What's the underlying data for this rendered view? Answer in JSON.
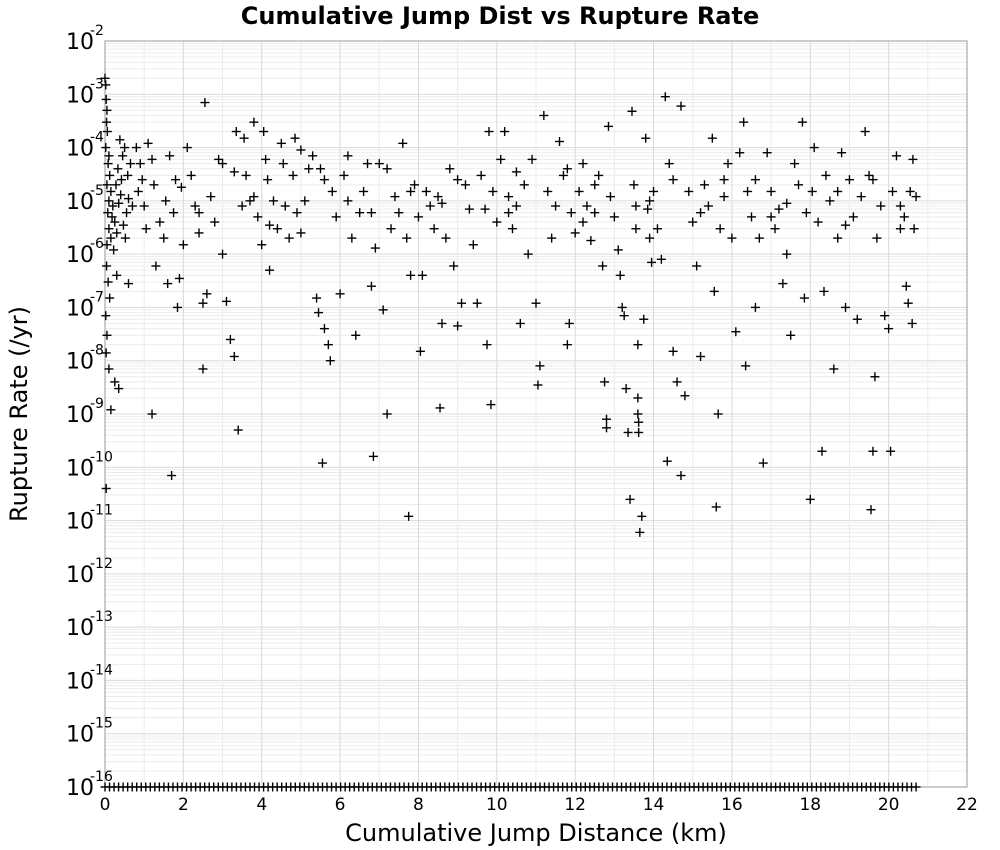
{
  "chart_data": {
    "type": "scatter",
    "title": "Cumulative Jump Dist vs Rupture Rate",
    "xlabel": "Cumulative Jump Distance (km)",
    "ylabel": "Rupture Rate (/yr)",
    "xlim": [
      0,
      22
    ],
    "ylim": [
      1e-16,
      0.01
    ],
    "yscale": "log",
    "grid": true,
    "marker": "+",
    "marker_color": "#000000",
    "x_ticks": [
      "0",
      "2",
      "4",
      "6",
      "8",
      "10",
      "12",
      "14",
      "16",
      "18",
      "20",
      "22"
    ],
    "y_ticks": [
      {
        "base": "10",
        "exp": "-16"
      },
      {
        "base": "10",
        "exp": "-15"
      },
      {
        "base": "10",
        "exp": "-14"
      },
      {
        "base": "10",
        "exp": "-13"
      },
      {
        "base": "10",
        "exp": "-12"
      },
      {
        "base": "10",
        "exp": "-11"
      },
      {
        "base": "10",
        "exp": "-10"
      },
      {
        "base": "10",
        "exp": "-9"
      },
      {
        "base": "10",
        "exp": "-8"
      },
      {
        "base": "10",
        "exp": "-7"
      },
      {
        "base": "10",
        "exp": "-6"
      },
      {
        "base": "10",
        "exp": "-5"
      },
      {
        "base": "10",
        "exp": "-4"
      },
      {
        "base": "10",
        "exp": "-3"
      },
      {
        "base": "10",
        "exp": "-2"
      }
    ],
    "floor_points": {
      "y": 1e-16,
      "x_range": [
        0,
        20.7
      ],
      "count": 180
    },
    "points": [
      [
        0.0,
        0.002
      ],
      [
        0.02,
        0.0015
      ],
      [
        0.03,
        0.0008
      ],
      [
        0.05,
        0.0005
      ],
      [
        0.04,
        0.0003
      ],
      [
        0.06,
        0.0002
      ],
      [
        0.02,
        0.0001
      ],
      [
        0.1,
        7e-05
      ],
      [
        0.08,
        5e-05
      ],
      [
        0.12,
        3e-05
      ],
      [
        0.05,
        2e-05
      ],
      [
        0.15,
        1.5e-05
      ],
      [
        0.1,
        1e-05
      ],
      [
        0.2,
        8e-06
      ],
      [
        0.07,
        6e-06
      ],
      [
        0.18,
        5e-06
      ],
      [
        0.25,
        4e-06
      ],
      [
        0.1,
        3e-06
      ],
      [
        0.3,
        2.5e-06
      ],
      [
        0.15,
        2e-06
      ],
      [
        0.05,
        1.5e-06
      ],
      [
        0.22,
        1.2e-06
      ],
      [
        0.35,
        9e-06
      ],
      [
        0.4,
        1.3e-05
      ],
      [
        0.28,
        2e-05
      ],
      [
        0.33,
        4e-05
      ],
      [
        0.45,
        7e-05
      ],
      [
        0.5,
        0.0001
      ],
      [
        0.38,
        0.00014
      ],
      [
        0.42,
        2.5e-05
      ],
      [
        0.47,
        3.5e-06
      ],
      [
        0.55,
        6e-06
      ],
      [
        0.6,
        1.1e-05
      ],
      [
        0.52,
        2e-06
      ],
      [
        0.58,
        3e-05
      ],
      [
        0.65,
        5e-05
      ],
      [
        0.7,
        8e-06
      ],
      [
        0.04,
        6e-07
      ],
      [
        0.08,
        3e-07
      ],
      [
        0.12,
        1.5e-07
      ],
      [
        0.02,
        7e-08
      ],
      [
        0.05,
        3e-08
      ],
      [
        0.03,
        1.4e-08
      ],
      [
        0.1,
        7e-09
      ],
      [
        0.25,
        4e-09
      ],
      [
        0.35,
        3e-09
      ],
      [
        0.15,
        1.2e-09
      ],
      [
        0.03,
        4e-11
      ],
      [
        0.3,
        4e-07
      ],
      [
        0.6,
        2.8e-07
      ],
      [
        0.8,
        0.0001
      ],
      [
        0.9,
        5e-05
      ],
      [
        0.85,
        1.5e-05
      ],
      [
        1.0,
        8e-06
      ],
      [
        1.05,
        3e-06
      ],
      [
        0.95,
        2.5e-05
      ],
      [
        1.1,
        0.00012
      ],
      [
        1.2,
        6e-05
      ],
      [
        1.25,
        2e-05
      ],
      [
        1.3,
        6e-07
      ],
      [
        1.4,
        4e-06
      ],
      [
        1.5,
        2e-06
      ],
      [
        1.55,
        1e-05
      ],
      [
        1.6,
        2.8e-07
      ],
      [
        1.65,
        7e-05
      ],
      [
        1.75,
        6e-06
      ],
      [
        1.85,
        1e-07
      ],
      [
        1.9,
        3.5e-07
      ],
      [
        1.95,
        1.8e-05
      ],
      [
        2.0,
        1.5e-06
      ],
      [
        1.2,
        1e-09
      ],
      [
        1.7,
        7e-11
      ],
      [
        2.1,
        0.0001
      ],
      [
        2.2,
        3e-05
      ],
      [
        2.3,
        8e-06
      ],
      [
        2.4,
        2.5e-06
      ],
      [
        2.5,
        1.2e-07
      ],
      [
        2.55,
        0.0007
      ],
      [
        2.6,
        1.8e-07
      ],
      [
        2.5,
        7e-09
      ],
      [
        2.7,
        1.2e-05
      ],
      [
        2.8,
        4e-06
      ],
      [
        2.9,
        6e-05
      ],
      [
        3.0,
        1e-06
      ],
      [
        3.1,
        1.3e-07
      ],
      [
        3.2,
        2.5e-08
      ],
      [
        3.3,
        1.2e-08
      ],
      [
        3.35,
        0.0002
      ],
      [
        3.4,
        5e-10
      ],
      [
        3.5,
        8e-06
      ],
      [
        3.55,
        0.00015
      ],
      [
        3.6,
        3e-05
      ],
      [
        3.7,
        1e-05
      ],
      [
        3.8,
        0.0003
      ],
      [
        3.9,
        5e-06
      ],
      [
        4.0,
        1.5e-06
      ],
      [
        4.05,
        0.0002
      ],
      [
        4.1,
        6e-05
      ],
      [
        4.15,
        2.5e-05
      ],
      [
        4.2,
        5e-07
      ],
      [
        4.3,
        1e-05
      ],
      [
        4.4,
        3e-06
      ],
      [
        4.5,
        0.00012
      ],
      [
        4.55,
        5e-05
      ],
      [
        4.6,
        8e-06
      ],
      [
        4.7,
        2e-06
      ],
      [
        4.8,
        3e-05
      ],
      [
        4.85,
        0.00015
      ],
      [
        4.9,
        6e-06
      ],
      [
        5.0,
        2.5e-06
      ],
      [
        5.1,
        1e-05
      ],
      [
        5.2,
        4e-05
      ],
      [
        5.3,
        7e-05
      ],
      [
        5.4,
        1.5e-07
      ],
      [
        5.45,
        8e-08
      ],
      [
        5.5,
        4e-05
      ],
      [
        5.55,
        1.2e-10
      ],
      [
        5.6,
        4e-08
      ],
      [
        5.7,
        2e-08
      ],
      [
        5.75,
        1e-08
      ],
      [
        5.8,
        1.5e-05
      ],
      [
        5.9,
        5e-06
      ],
      [
        6.0,
        1.8e-07
      ],
      [
        6.1,
        3e-05
      ],
      [
        6.2,
        1e-05
      ],
      [
        6.3,
        2e-06
      ],
      [
        6.4,
        3e-08
      ],
      [
        6.5,
        6e-06
      ],
      [
        6.6,
        1.5e-05
      ],
      [
        6.7,
        5e-05
      ],
      [
        6.8,
        2.5e-07
      ],
      [
        6.85,
        1.6e-10
      ],
      [
        6.9,
        1.3e-06
      ],
      [
        7.0,
        5e-05
      ],
      [
        7.1,
        9e-08
      ],
      [
        7.2,
        1e-09
      ],
      [
        7.3,
        3e-06
      ],
      [
        7.4,
        1.2e-05
      ],
      [
        7.5,
        6e-06
      ],
      [
        7.6,
        0.00012
      ],
      [
        7.7,
        2e-06
      ],
      [
        7.75,
        1.2e-11
      ],
      [
        7.8,
        4e-07
      ],
      [
        7.9,
        2e-05
      ],
      [
        8.0,
        5e-06
      ],
      [
        8.05,
        1.5e-08
      ],
      [
        8.1,
        4e-07
      ],
      [
        8.2,
        1.5e-05
      ],
      [
        8.3,
        8e-06
      ],
      [
        8.4,
        3e-06
      ],
      [
        8.5,
        1.2e-05
      ],
      [
        8.55,
        1.3e-09
      ],
      [
        8.6,
        5e-08
      ],
      [
        8.7,
        2e-06
      ],
      [
        8.8,
        4e-05
      ],
      [
        8.9,
        6e-07
      ],
      [
        9.0,
        4.5e-08
      ],
      [
        9.1,
        1.2e-07
      ],
      [
        9.2,
        2e-05
      ],
      [
        9.3,
        7e-06
      ],
      [
        9.4,
        1.5e-06
      ],
      [
        9.5,
        1.2e-07
      ],
      [
        9.6,
        3e-05
      ],
      [
        9.7,
        7e-06
      ],
      [
        9.75,
        2e-08
      ],
      [
        9.8,
        0.0002
      ],
      [
        9.85,
        1.5e-09
      ],
      [
        9.9,
        1.5e-05
      ],
      [
        10.0,
        4e-06
      ],
      [
        10.1,
        6e-05
      ],
      [
        10.2,
        0.0002
      ],
      [
        10.3,
        1.2e-05
      ],
      [
        10.4,
        3e-06
      ],
      [
        10.5,
        8e-06
      ],
      [
        10.6,
        5e-08
      ],
      [
        10.7,
        2e-05
      ],
      [
        10.8,
        1e-06
      ],
      [
        10.9,
        6e-05
      ],
      [
        11.0,
        1.2e-07
      ],
      [
        11.05,
        3.5e-09
      ],
      [
        11.1,
        8e-09
      ],
      [
        11.2,
        0.0004
      ],
      [
        11.3,
        1.5e-05
      ],
      [
        11.4,
        2e-06
      ],
      [
        11.5,
        8e-06
      ],
      [
        11.6,
        0.00013
      ],
      [
        11.7,
        3e-05
      ],
      [
        11.8,
        2e-08
      ],
      [
        11.85,
        5e-08
      ],
      [
        11.9,
        6e-06
      ],
      [
        12.0,
        2.5e-06
      ],
      [
        12.1,
        1.5e-05
      ],
      [
        12.2,
        5e-05
      ],
      [
        12.3,
        8e-06
      ],
      [
        12.4,
        1.8e-06
      ],
      [
        12.5,
        2e-05
      ],
      [
        12.6,
        3e-05
      ],
      [
        12.7,
        6e-07
      ],
      [
        12.75,
        4e-09
      ],
      [
        12.8,
        8e-10
      ],
      [
        12.8,
        5.5e-10
      ],
      [
        12.85,
        0.00025
      ],
      [
        12.9,
        1.2e-05
      ],
      [
        13.0,
        5e-06
      ],
      [
        13.1,
        1.2e-06
      ],
      [
        13.15,
        4e-07
      ],
      [
        13.2,
        1e-07
      ],
      [
        13.25,
        7e-08
      ],
      [
        13.3,
        3e-09
      ],
      [
        13.35,
        4.5e-10
      ],
      [
        13.4,
        2.5e-11
      ],
      [
        13.45,
        0.00048
      ],
      [
        13.5,
        2e-05
      ],
      [
        13.55,
        8e-06
      ],
      [
        13.55,
        3e-06
      ],
      [
        13.6,
        2e-08
      ],
      [
        13.6,
        2e-09
      ],
      [
        13.6,
        1e-09
      ],
      [
        13.62,
        7e-10
      ],
      [
        13.62,
        4.5e-10
      ],
      [
        13.65,
        6e-12
      ],
      [
        13.7,
        1.2e-11
      ],
      [
        13.75,
        6e-08
      ],
      [
        13.8,
        0.00015
      ],
      [
        13.85,
        7e-06
      ],
      [
        13.9,
        2e-06
      ],
      [
        13.95,
        7e-07
      ],
      [
        14.0,
        1.5e-05
      ],
      [
        14.1,
        3e-06
      ],
      [
        14.2,
        8e-07
      ],
      [
        14.3,
        0.0009
      ],
      [
        14.35,
        1.3e-10
      ],
      [
        14.4,
        5e-05
      ],
      [
        14.5,
        1.5e-08
      ],
      [
        14.6,
        4e-09
      ],
      [
        14.7,
        7e-11
      ],
      [
        14.7,
        0.0006
      ],
      [
        14.8,
        2.2e-09
      ],
      [
        14.9,
        1.5e-05
      ],
      [
        15.0,
        4e-06
      ],
      [
        15.1,
        6e-07
      ],
      [
        15.2,
        1.2e-08
      ],
      [
        15.3,
        2e-05
      ],
      [
        15.4,
        8e-06
      ],
      [
        15.5,
        0.00015
      ],
      [
        15.55,
        2e-07
      ],
      [
        15.6,
        1.8e-11
      ],
      [
        15.65,
        1e-09
      ],
      [
        15.7,
        3e-06
      ],
      [
        15.8,
        1.2e-05
      ],
      [
        15.9,
        5e-05
      ],
      [
        16.0,
        2e-06
      ],
      [
        16.1,
        3.5e-08
      ],
      [
        16.2,
        8e-05
      ],
      [
        16.3,
        0.0003
      ],
      [
        16.35,
        8e-09
      ],
      [
        16.4,
        1.5e-05
      ],
      [
        16.5,
        5e-06
      ],
      [
        16.6,
        1e-07
      ],
      [
        16.7,
        2e-06
      ],
      [
        16.8,
        1.2e-10
      ],
      [
        16.9,
        8e-05
      ],
      [
        17.0,
        1.5e-05
      ],
      [
        17.1,
        3e-06
      ],
      [
        17.2,
        7e-06
      ],
      [
        17.3,
        2.8e-07
      ],
      [
        17.4,
        1e-06
      ],
      [
        17.5,
        3e-08
      ],
      [
        17.6,
        5e-05
      ],
      [
        17.7,
        2e-05
      ],
      [
        17.8,
        0.0003
      ],
      [
        17.85,
        1.5e-07
      ],
      [
        17.9,
        6e-06
      ],
      [
        18.0,
        2.5e-11
      ],
      [
        18.05,
        1.5e-05
      ],
      [
        18.1,
        0.0001
      ],
      [
        18.2,
        4e-06
      ],
      [
        18.3,
        2e-10
      ],
      [
        18.35,
        2e-07
      ],
      [
        18.4,
        3e-05
      ],
      [
        18.5,
        1e-05
      ],
      [
        18.6,
        7e-09
      ],
      [
        18.7,
        2e-06
      ],
      [
        18.8,
        8e-05
      ],
      [
        18.9,
        1e-07
      ],
      [
        19.0,
        2.5e-05
      ],
      [
        19.1,
        5e-06
      ],
      [
        19.2,
        6e-08
      ],
      [
        19.3,
        1.2e-05
      ],
      [
        19.4,
        0.0002
      ],
      [
        19.5,
        3e-05
      ],
      [
        19.55,
        1.6e-11
      ],
      [
        19.6,
        2e-10
      ],
      [
        19.65,
        5e-09
      ],
      [
        19.7,
        2e-06
      ],
      [
        19.8,
        8e-06
      ],
      [
        19.9,
        7e-08
      ],
      [
        20.0,
        4e-08
      ],
      [
        20.05,
        2e-10
      ],
      [
        20.1,
        1.5e-05
      ],
      [
        20.2,
        7e-05
      ],
      [
        20.3,
        3e-06
      ],
      [
        20.4,
        5e-06
      ],
      [
        20.45,
        2.5e-07
      ],
      [
        20.5,
        1.2e-07
      ],
      [
        20.55,
        1.5e-05
      ],
      [
        20.6,
        5e-08
      ],
      [
        20.62,
        6e-05
      ],
      [
        20.65,
        3e-06
      ],
      [
        20.7,
        1.2e-05
      ],
      [
        3.0,
        5e-05
      ],
      [
        3.8,
        1.2e-05
      ],
      [
        5.0,
        9e-05
      ],
      [
        6.2,
        7e-05
      ],
      [
        7.2,
        4e-05
      ],
      [
        9.0,
        2.5e-05
      ],
      [
        10.5,
        3.5e-05
      ],
      [
        11.8,
        4e-05
      ],
      [
        12.5,
        6e-06
      ],
      [
        14.5,
        2.5e-05
      ],
      [
        15.8,
        2.5e-05
      ],
      [
        16.6,
        2.5e-05
      ],
      [
        17.4,
        9e-06
      ],
      [
        18.7,
        1.5e-05
      ],
      [
        19.6,
        2.5e-05
      ],
      [
        2.4,
        6e-06
      ],
      [
        4.2,
        3.5e-06
      ],
      [
        6.8,
        6e-06
      ],
      [
        8.6,
        9e-06
      ],
      [
        10.3,
        6e-06
      ],
      [
        12.2,
        4e-06
      ],
      [
        13.9,
        1e-05
      ],
      [
        15.2,
        6e-06
      ],
      [
        17.0,
        5e-06
      ],
      [
        18.9,
        3.5e-06
      ],
      [
        20.3,
        8e-06
      ],
      [
        1.8,
        2.5e-05
      ],
      [
        3.3,
        3.5e-05
      ],
      [
        5.6,
        2.5e-05
      ],
      [
        7.8,
        1.5e-05
      ]
    ]
  }
}
